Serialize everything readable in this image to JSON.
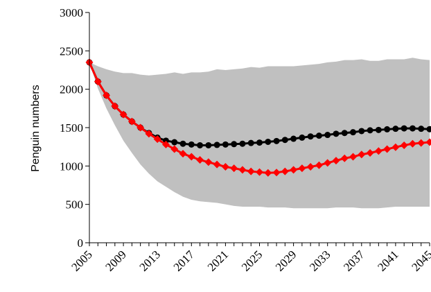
{
  "chart_data": {
    "type": "line",
    "title": "",
    "ylabel": "Penguin numbers",
    "xlabel": "",
    "xlim": [
      2005,
      2045
    ],
    "ylim": [
      0,
      3000
    ],
    "y_ticks": [
      "0",
      "500",
      "1000",
      "1500",
      "2000",
      "2500",
      "3000"
    ],
    "x_tick_labels": [
      "2005",
      "2009",
      "2013",
      "2017",
      "2021",
      "2025",
      "2029",
      "2033",
      "2037",
      "2041",
      "2045"
    ],
    "grid": false,
    "legend": "none",
    "x": [
      2005,
      2006,
      2007,
      2008,
      2009,
      2010,
      2011,
      2012,
      2013,
      2014,
      2015,
      2016,
      2017,
      2018,
      2019,
      2020,
      2021,
      2022,
      2023,
      2024,
      2025,
      2026,
      2027,
      2028,
      2029,
      2030,
      2031,
      2032,
      2033,
      2034,
      2035,
      2036,
      2037,
      2038,
      2039,
      2040,
      2041,
      2042,
      2043,
      2044,
      2045
    ],
    "band": {
      "color": "#c0c0c0",
      "upper": [
        2350,
        2300,
        2260,
        2230,
        2210,
        2210,
        2190,
        2180,
        2190,
        2200,
        2220,
        2200,
        2220,
        2220,
        2230,
        2260,
        2250,
        2260,
        2270,
        2290,
        2280,
        2300,
        2300,
        2300,
        2300,
        2310,
        2320,
        2330,
        2350,
        2360,
        2380,
        2380,
        2390,
        2370,
        2370,
        2390,
        2390,
        2390,
        2410,
        2390,
        2380
      ],
      "lower": [
        2350,
        2010,
        1750,
        1530,
        1330,
        1170,
        1020,
        900,
        800,
        730,
        660,
        600,
        560,
        540,
        530,
        520,
        500,
        480,
        470,
        470,
        470,
        460,
        460,
        460,
        450,
        450,
        450,
        450,
        450,
        460,
        460,
        460,
        450,
        450,
        450,
        460,
        470,
        470,
        470,
        470,
        470
      ]
    },
    "series": [
      {
        "color": "#000000",
        "marker": "circle",
        "values": [
          2350,
          2100,
          1920,
          1780,
          1670,
          1580,
          1500,
          1430,
          1370,
          1330,
          1310,
          1290,
          1280,
          1270,
          1270,
          1275,
          1280,
          1285,
          1290,
          1300,
          1305,
          1315,
          1325,
          1340,
          1355,
          1370,
          1385,
          1395,
          1405,
          1420,
          1430,
          1440,
          1455,
          1465,
          1470,
          1478,
          1485,
          1490,
          1490,
          1485,
          1480
        ]
      },
      {
        "color": "#ff0000",
        "marker": "diamond",
        "values": [
          2350,
          2100,
          1920,
          1780,
          1670,
          1580,
          1500,
          1420,
          1350,
          1280,
          1220,
          1160,
          1120,
          1080,
          1050,
          1020,
          990,
          970,
          950,
          930,
          920,
          910,
          915,
          930,
          950,
          970,
          990,
          1010,
          1040,
          1070,
          1100,
          1120,
          1150,
          1170,
          1195,
          1220,
          1245,
          1270,
          1290,
          1300,
          1310
        ]
      }
    ]
  }
}
